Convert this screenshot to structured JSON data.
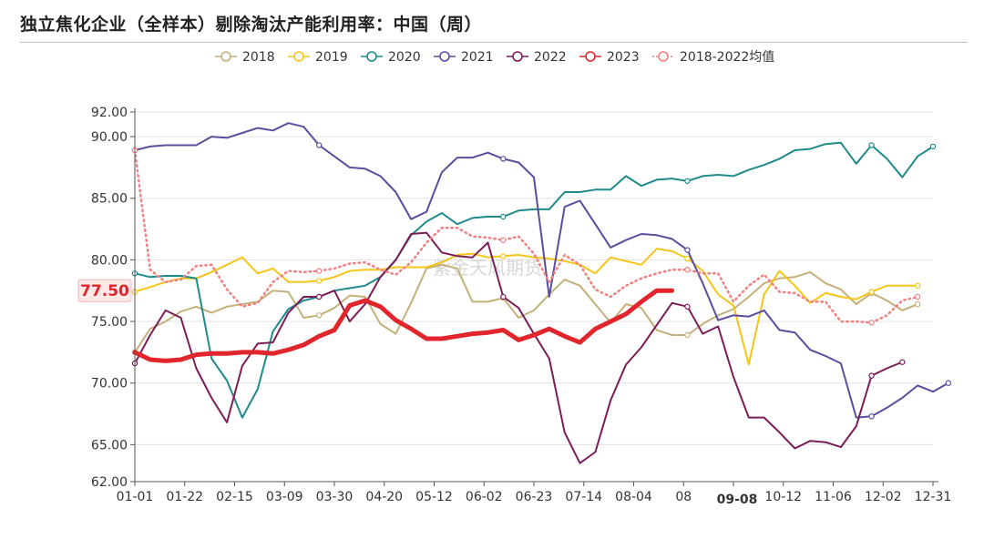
{
  "title": "独立焦化企业（全样本）剔除淘汰产能利用率：中国（周）",
  "watermark": "紫金天风期货",
  "chart_data": {
    "type": "line",
    "title": "独立焦化企业（全样本）剔除淘汰产能利用率：中国（周）",
    "xlabel": "",
    "ylabel": "",
    "ylim": [
      62,
      92
    ],
    "y_ticks": [
      62,
      65,
      70,
      75,
      80,
      85,
      90,
      92
    ],
    "y_tick_labels": [
      "62.00",
      "65.00",
      "70.00",
      "75.00",
      "80.00",
      "85.00",
      "90.00",
      "92.00"
    ],
    "x_tick_labels": [
      "01-01",
      "01-22",
      "02-15",
      "03-09",
      "03-30",
      "04-20",
      "05-12",
      "06-02",
      "06-23",
      "07-14",
      "08-04",
      "08",
      "09-08",
      "10-12",
      "11-06",
      "12-02",
      "12-31"
    ],
    "x_week_max": 52,
    "grid": "horizontal",
    "legend_position": "top",
    "highlight_x_label": "09-08",
    "highlight_value_label": "77.50",
    "highlight_color": "#e0252c",
    "series": [
      {
        "name": "2018",
        "color": "#c4b07a",
        "style": "solid",
        "width": 2,
        "values": [
          72.5,
          74.4,
          75.0,
          75.8,
          76.2,
          75.7,
          76.2,
          76.4,
          76.6,
          77.5,
          77.4,
          75.3,
          75.5,
          76.1,
          77.1,
          77.0,
          74.8,
          74.0,
          76.5,
          79.3,
          79.6,
          79.3,
          76.6,
          76.6,
          76.9,
          75.3,
          75.9,
          77.2,
          78.4,
          77.9,
          76.4,
          74.9,
          76.4,
          76.1,
          74.3,
          73.9,
          73.9,
          74.8,
          75.5,
          76.0,
          77.0,
          78.1,
          78.5,
          78.6,
          79.0,
          78.1,
          77.6,
          76.4,
          77.3,
          76.7,
          75.9,
          76.4
        ]
      },
      {
        "name": "2019",
        "color": "#f5c518",
        "style": "solid",
        "width": 2,
        "values": [
          77.4,
          77.8,
          78.2,
          78.5,
          78.5,
          79.0,
          79.6,
          80.2,
          78.9,
          79.3,
          78.2,
          78.2,
          78.3,
          78.6,
          79.1,
          79.2,
          79.2,
          79.4,
          79.4,
          79.4,
          79.8,
          80.4,
          80.5,
          80.2,
          80.3,
          80.4,
          80.2,
          80.1,
          79.9,
          79.6,
          78.9,
          80.2,
          79.9,
          79.6,
          80.9,
          80.7,
          80.1,
          79.1,
          77.2,
          76.3,
          71.5,
          77.2,
          79.1,
          77.9,
          76.5,
          77.3,
          77.0,
          76.8,
          77.4,
          77.9,
          77.9,
          77.9
        ]
      },
      {
        "name": "2020",
        "color": "#1e8a8a",
        "style": "solid",
        "width": 2,
        "values": [
          78.9,
          78.6,
          78.7,
          78.7,
          78.5,
          72.0,
          70.2,
          67.2,
          69.5,
          74.2,
          76.0,
          76.7,
          77.0,
          77.5,
          77.7,
          77.9,
          78.6,
          80.0,
          82.0,
          83.1,
          83.8,
          82.9,
          83.4,
          83.5,
          83.5,
          84.0,
          84.1,
          84.1,
          85.5,
          85.5,
          85.7,
          85.7,
          86.8,
          86.0,
          86.5,
          86.6,
          86.4,
          86.8,
          86.9,
          86.8,
          87.3,
          87.7,
          88.2,
          88.9,
          89.0,
          89.4,
          89.5,
          87.8,
          89.3,
          88.2,
          86.7,
          88.4,
          89.2
        ]
      },
      {
        "name": "2021",
        "color": "#5b4d9e",
        "style": "solid",
        "width": 2,
        "values": [
          88.9,
          89.2,
          89.3,
          89.3,
          89.3,
          90.0,
          89.9,
          90.3,
          90.7,
          90.5,
          91.1,
          90.8,
          89.3,
          88.4,
          87.5,
          87.4,
          86.8,
          85.5,
          83.3,
          83.9,
          87.1,
          88.3,
          88.3,
          88.7,
          88.2,
          87.9,
          86.7,
          77.0,
          84.3,
          84.8,
          82.9,
          81.0,
          81.6,
          82.1,
          82.0,
          81.7,
          80.8,
          78.1,
          75.1,
          75.5,
          75.4,
          75.9,
          74.3,
          74.1,
          72.7,
          72.2,
          71.6,
          67.2,
          67.3,
          68.0,
          68.8,
          69.8,
          69.3,
          70.0
        ]
      },
      {
        "name": "2022",
        "color": "#7b1d59",
        "style": "solid",
        "width": 2,
        "values": [
          71.6,
          73.9,
          75.9,
          75.3,
          71.2,
          68.8,
          66.8,
          71.4,
          73.2,
          73.3,
          75.7,
          77.0,
          77.0,
          77.5,
          75.0,
          76.4,
          78.6,
          80.0,
          82.1,
          82.2,
          80.6,
          80.3,
          80.2,
          81.4,
          77.0,
          76.1,
          74.0,
          72.0,
          66.0,
          63.5,
          64.4,
          68.6,
          71.5,
          72.9,
          74.7,
          76.5,
          76.2,
          74.0,
          74.6,
          70.5,
          67.2,
          67.2,
          66.0,
          64.7,
          65.3,
          65.2,
          64.8,
          66.5,
          70.6,
          71.2,
          71.7
        ]
      },
      {
        "name": "2023",
        "color": "#e0252c",
        "style": "solid",
        "width": 5,
        "values": [
          72.5,
          71.9,
          71.8,
          71.9,
          72.3,
          72.4,
          72.4,
          72.5,
          72.5,
          72.4,
          72.7,
          73.1,
          73.8,
          74.3,
          76.3,
          76.7,
          76.2,
          75.1,
          74.4,
          73.6,
          73.6,
          73.8,
          74.0,
          74.1,
          74.3,
          73.5,
          73.9,
          74.4,
          73.8,
          73.3,
          74.4,
          75.0,
          75.6,
          76.6,
          77.5,
          77.5
        ]
      },
      {
        "name": "2018-2022均值",
        "color": "#f08080",
        "style": "dotted",
        "width": 2.5,
        "values": [
          88.9,
          79.2,
          78.2,
          78.4,
          79.5,
          79.6,
          77.6,
          76.2,
          76.5,
          78.2,
          79.1,
          79.0,
          79.1,
          79.3,
          79.7,
          79.8,
          79.2,
          78.8,
          79.8,
          81.4,
          82.6,
          82.6,
          81.9,
          81.8,
          81.6,
          81.9,
          80.5,
          78.2,
          80.4,
          79.6,
          77.6,
          77.0,
          77.9,
          78.5,
          78.9,
          79.2,
          79.2,
          78.9,
          78.9,
          76.6,
          77.9,
          78.8,
          77.4,
          77.3,
          76.6,
          76.6,
          75.0,
          75.0,
          74.9,
          75.5,
          76.7,
          77.0
        ]
      }
    ]
  }
}
